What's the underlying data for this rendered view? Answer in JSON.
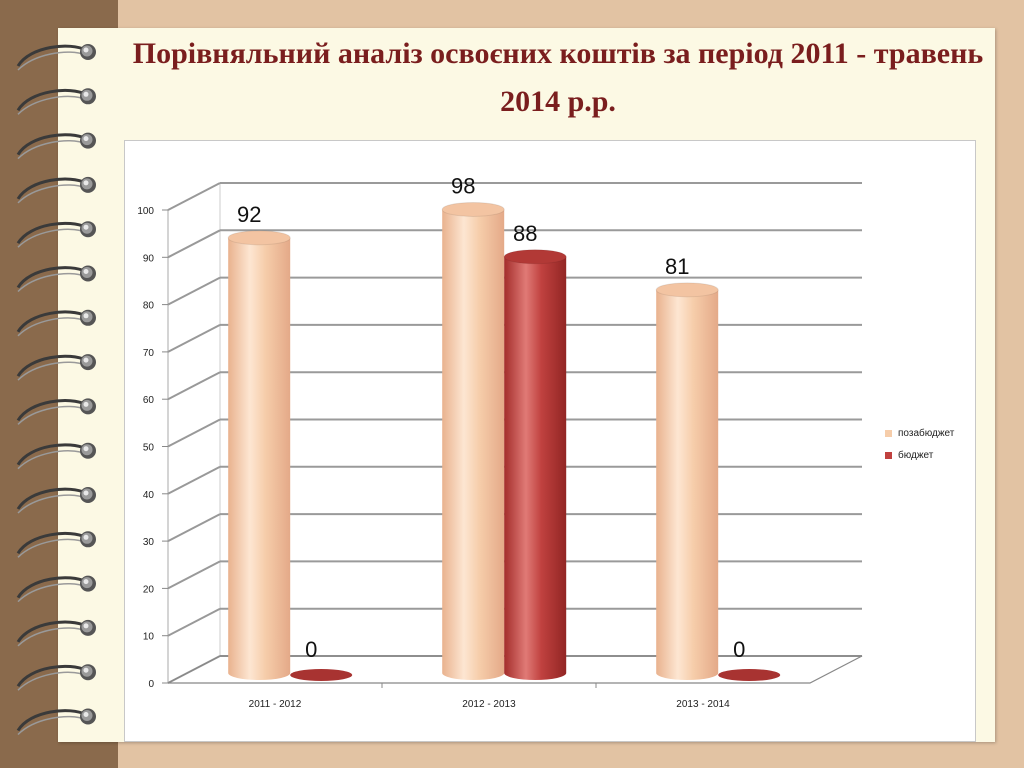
{
  "slide": {
    "title": "Порівняльний аналіз освоєних коштів за період 2011 - травень 2014 р.р."
  },
  "colors": {
    "series1": "#f6cdaa",
    "series2": "#c0413f",
    "title": "#7a1e1e"
  },
  "chart_data": {
    "type": "bar",
    "categories": [
      "2011 - 2012",
      "2012 - 2013",
      "2013 - 2014"
    ],
    "series": [
      {
        "name": "позабюджет",
        "values": [
          92,
          98,
          81
        ],
        "color": "#f6cdaa"
      },
      {
        "name": "бюджет",
        "values": [
          0,
          88,
          0
        ],
        "color": "#c0413f"
      }
    ],
    "data_labels": [
      [
        "92",
        "98",
        "81"
      ],
      [
        "0",
        "88",
        "0"
      ]
    ],
    "ylim": [
      0,
      100
    ],
    "yticks": [
      "0",
      "10",
      "20",
      "30",
      "40",
      "50",
      "60",
      "70",
      "80",
      "90",
      "100"
    ],
    "grid": true,
    "legend_position": "right",
    "style": "3d-cylinder"
  }
}
